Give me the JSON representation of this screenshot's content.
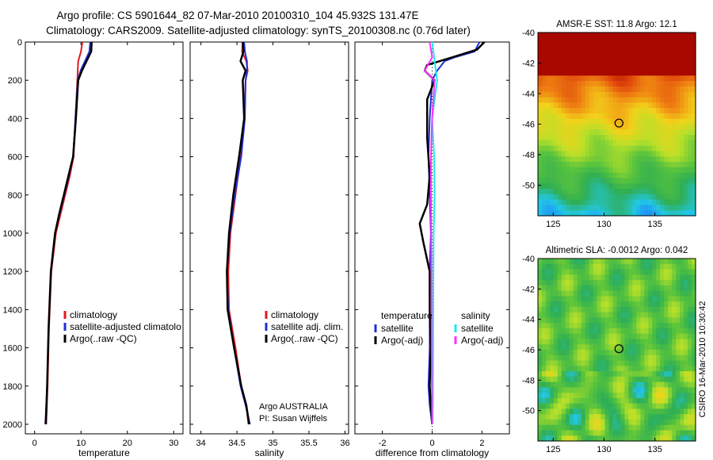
{
  "header": {
    "line1": "Argo profile: CS 5901644_82 07-Mar-2010 20100310_104 45.932S 131.47E",
    "line2": "Climatology: CARS2009. Satellite-adjusted climatology: synTS_20100308.nc (0.76d later)"
  },
  "side_label": "CSIRO 16-Mar-2010 10:30:42",
  "colors": {
    "climatology": "#e31a1c",
    "satellite": "#1f2fd6",
    "argo": "#000000",
    "temp_diff_satellite": "#1f2fd6",
    "temp_diff_argo": "#000000",
    "sal_diff_satellite": "#22e5f0",
    "sal_diff_argo": "#ff33ff",
    "float_marker": "#000000"
  },
  "chart_data": [
    {
      "id": "temperature",
      "type": "line",
      "xlabel": "temperature",
      "ylabel": "",
      "xlim": [
        -2,
        32
      ],
      "ylim": [
        2050,
        0
      ],
      "y_inverted": true,
      "xticks": [
        0,
        10,
        20,
        30
      ],
      "yticks": [
        0,
        200,
        400,
        600,
        800,
        1000,
        1200,
        1400,
        1600,
        1800,
        2000
      ],
      "legend": [
        "climatology",
        "satellite-adjusted climatolo",
        "Argo(..raw -QC)"
      ],
      "series": [
        {
          "name": "climatology",
          "color_key": "climatology",
          "x": [
            10.3,
            10.0,
            9.4,
            9.2,
            8.8,
            8.4,
            7.6,
            6.6,
            5.6,
            4.6,
            3.6,
            3.1,
            2.8,
            2.5
          ],
          "y": [
            0,
            50,
            100,
            200,
            400,
            600,
            700,
            800,
            900,
            1000,
            1200,
            1500,
            1800,
            2000
          ]
        },
        {
          "name": "satellite-adjusted climatolo",
          "color_key": "satellite",
          "x": [
            12.0,
            11.8,
            9.9,
            9.3,
            8.8,
            8.3,
            7.4,
            6.4,
            5.4,
            4.4,
            3.5,
            3.0,
            2.7,
            2.3
          ],
          "y": [
            0,
            50,
            150,
            200,
            400,
            600,
            700,
            800,
            900,
            1000,
            1200,
            1500,
            1800,
            2000
          ]
        },
        {
          "name": "Argo(..raw -QC)",
          "color_key": "argo",
          "x": [
            12.3,
            12.2,
            10.2,
            9.4,
            8.9,
            8.3,
            7.3,
            6.3,
            5.3,
            4.4,
            3.5,
            3.0,
            2.7,
            2.4
          ],
          "y": [
            0,
            50,
            150,
            200,
            400,
            600,
            700,
            800,
            900,
            1000,
            1200,
            1500,
            1800,
            2000
          ]
        }
      ]
    },
    {
      "id": "salinity",
      "type": "line",
      "xlabel": "salinity",
      "ylabel": "",
      "xlim": [
        33.85,
        36.05
      ],
      "ylim": [
        2050,
        0
      ],
      "y_inverted": true,
      "xticks": [
        34,
        34.5,
        35,
        35.5,
        36
      ],
      "yticks": [
        0,
        200,
        400,
        600,
        800,
        1000,
        1200,
        1400,
        1600,
        1800,
        2000
      ],
      "legend": [
        "climatology",
        "satellite adj. clim.",
        "Argo(..raw -QC)"
      ],
      "annotation": [
        "Argo AUSTRALIA",
        "PI: Susan Wijffels"
      ],
      "series": [
        {
          "name": "climatology",
          "color_key": "climatology",
          "x": [
            34.58,
            34.57,
            34.63,
            34.65,
            34.62,
            34.6,
            34.55,
            34.48,
            34.41,
            34.38,
            34.39,
            34.48,
            34.56,
            34.63,
            34.66
          ],
          "y": [
            0,
            50,
            100,
            150,
            200,
            400,
            600,
            800,
            1000,
            1200,
            1400,
            1600,
            1800,
            1900,
            2000
          ]
        },
        {
          "name": "satellite adj. clim.",
          "color_key": "satellite",
          "x": [
            34.6,
            34.61,
            34.64,
            34.64,
            34.62,
            34.61,
            34.56,
            34.47,
            34.4,
            34.36,
            34.38,
            34.46,
            34.55,
            34.62,
            34.68
          ],
          "y": [
            0,
            50,
            100,
            150,
            200,
            400,
            600,
            800,
            1000,
            1200,
            1400,
            1600,
            1800,
            1900,
            2000
          ]
        },
        {
          "name": "Argo(..raw -QC)",
          "color_key": "argo",
          "x": [
            34.58,
            34.59,
            34.55,
            34.62,
            34.58,
            34.6,
            34.53,
            34.45,
            34.39,
            34.36,
            34.37,
            34.46,
            34.56,
            34.63,
            34.67
          ],
          "y": [
            0,
            50,
            100,
            150,
            200,
            400,
            600,
            800,
            1000,
            1200,
            1400,
            1600,
            1800,
            1900,
            2000
          ]
        }
      ]
    },
    {
      "id": "difference",
      "type": "line",
      "xlabel": "difference from climatology",
      "ylabel": "",
      "xlim": [
        -3.1,
        3.1
      ],
      "ylim": [
        2050,
        0
      ],
      "y_inverted": true,
      "xticks": [
        -2,
        0,
        2
      ],
      "yticks": [
        0,
        200,
        400,
        600,
        800,
        1000,
        1200,
        1400,
        1600,
        1800,
        2000
      ],
      "legend_titles": [
        "temperature",
        "salinity"
      ],
      "legend": [
        {
          "group": "temperature",
          "name": "satellite",
          "color_key": "temp_diff_satellite"
        },
        {
          "group": "temperature",
          "name": "Argo(-adj)",
          "color_key": "temp_diff_argo"
        },
        {
          "group": "salinity",
          "name": "satellite",
          "color_key": "sal_diff_satellite"
        },
        {
          "group": "salinity",
          "name": "Argo(-adj)",
          "color_key": "sal_diff_argo"
        }
      ],
      "series": [
        {
          "name": "satellite",
          "group": "temperature",
          "color_key": "temp_diff_satellite",
          "x": [
            1.9,
            1.7,
            0.9,
            0.5,
            0.2,
            0.0,
            -0.1,
            -0.15,
            -0.1,
            -0.05,
            -0.1,
            -0.1,
            -0.1,
            -0.15,
            -0.1,
            0.0
          ],
          "y": [
            0,
            50,
            80,
            100,
            150,
            200,
            400,
            600,
            800,
            1000,
            1200,
            1400,
            1600,
            1800,
            1900,
            2000
          ]
        },
        {
          "name": "Argo(-adj)",
          "group": "temperature",
          "color_key": "temp_diff_argo",
          "x": [
            2.1,
            1.8,
            0.8,
            -0.2,
            -0.3,
            0.1,
            -0.2,
            -0.2,
            -0.1,
            -0.2,
            -0.5,
            -0.35,
            -0.1,
            -0.1,
            -0.05,
            -0.1,
            -0.05,
            0.0
          ],
          "y": [
            0,
            40,
            80,
            120,
            150,
            200,
            300,
            500,
            700,
            850,
            950,
            1050,
            1200,
            1400,
            1600,
            1800,
            1900,
            2000
          ]
        },
        {
          "name": "satellite",
          "group": "salinity",
          "color_key": "sal_diff_satellite",
          "x": [
            0.0,
            0.1,
            0.15,
            0.2,
            0.1,
            0.0,
            0.08,
            0.1,
            0.06,
            0.05,
            0.04,
            0.03,
            0.02
          ],
          "y": [
            0,
            100,
            150,
            200,
            300,
            400,
            600,
            800,
            1000,
            1200,
            1600,
            1900,
            2000
          ]
        },
        {
          "name": "Argo(-adj)",
          "group": "salinity",
          "color_key": "sal_diff_argo",
          "x": [
            -0.1,
            0.0,
            -0.3,
            0.1,
            0.05,
            0.0,
            -0.05,
            -0.05,
            -0.03,
            -0.02,
            0.0
          ],
          "y": [
            0,
            80,
            150,
            200,
            300,
            400,
            600,
            800,
            1200,
            1600,
            2000
          ]
        }
      ]
    },
    {
      "id": "sst_map",
      "type": "heatmap",
      "title": "AMSR-E SST: 11.8 Argo: 12.1",
      "xlim": [
        123.5,
        139
      ],
      "ylim": [
        -52,
        -40
      ],
      "xticks": [
        125,
        130,
        135
      ],
      "yticks": [
        -40,
        -42,
        -44,
        -46,
        -48,
        -50
      ],
      "float_position": {
        "lon": 131.47,
        "lat": -45.932
      },
      "color_scale": [
        "#1a6bff",
        "#22c8e6",
        "#2fae55",
        "#5ac43c",
        "#b8e02a",
        "#f2d21a",
        "#f08a12",
        "#e0440c",
        "#a80800"
      ]
    },
    {
      "id": "sla_map",
      "type": "heatmap",
      "title": "Altimetric SLA: -0.0012 Argo: 0.042",
      "xlim": [
        123.5,
        139
      ],
      "ylim": [
        -52,
        -40
      ],
      "xticks": [
        125,
        130,
        135
      ],
      "yticks": [
        -40,
        -42,
        -44,
        -46,
        -48,
        -50
      ],
      "float_position": {
        "lon": 131.47,
        "lat": -45.932
      },
      "color_scale": [
        "#1a6bff",
        "#22c8e6",
        "#2fae55",
        "#5ac43c",
        "#b8e02a",
        "#f2d21a",
        "#f08a12",
        "#e0440c",
        "#a80800"
      ]
    }
  ]
}
